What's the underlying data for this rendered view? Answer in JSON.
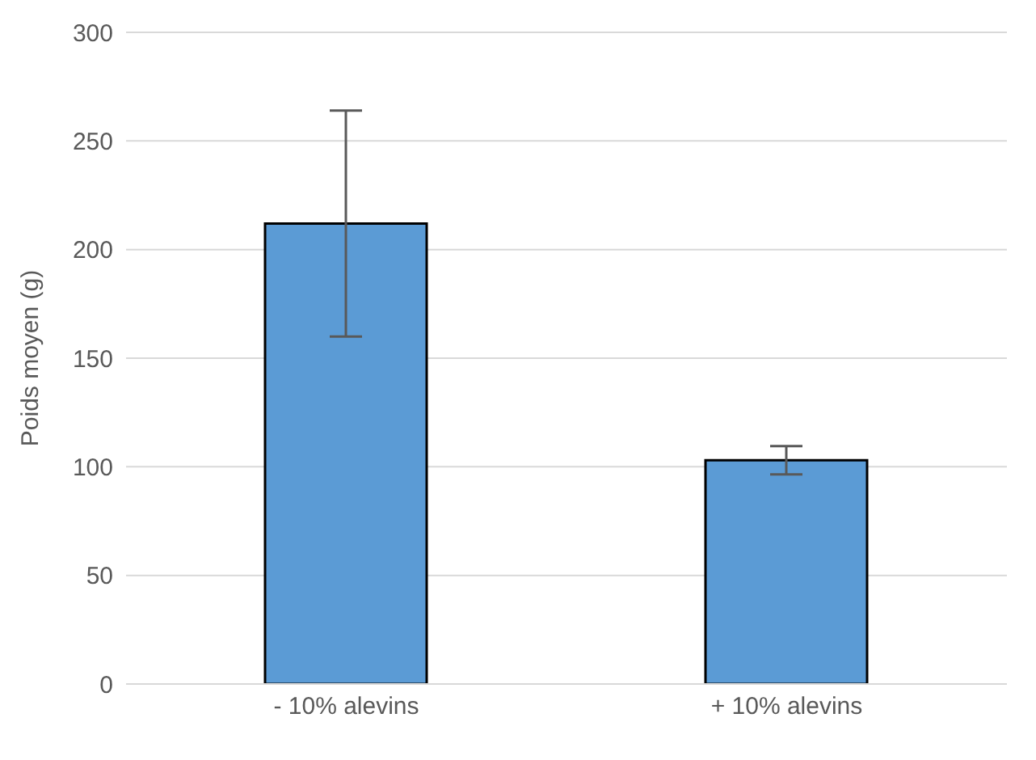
{
  "chart_data": {
    "type": "bar",
    "ylabel": "Poids moyen (g)",
    "categories": [
      "- 10% alevins",
      "+ 10% alevins"
    ],
    "values": [
      212,
      103
    ],
    "color": "#5b9bd5",
    "errors": [
      52,
      6.5
    ],
    "ylim": [
      0,
      300
    ],
    "yticks": [
      0,
      50,
      100,
      150,
      200,
      250,
      300
    ],
    "grid": "y"
  }
}
